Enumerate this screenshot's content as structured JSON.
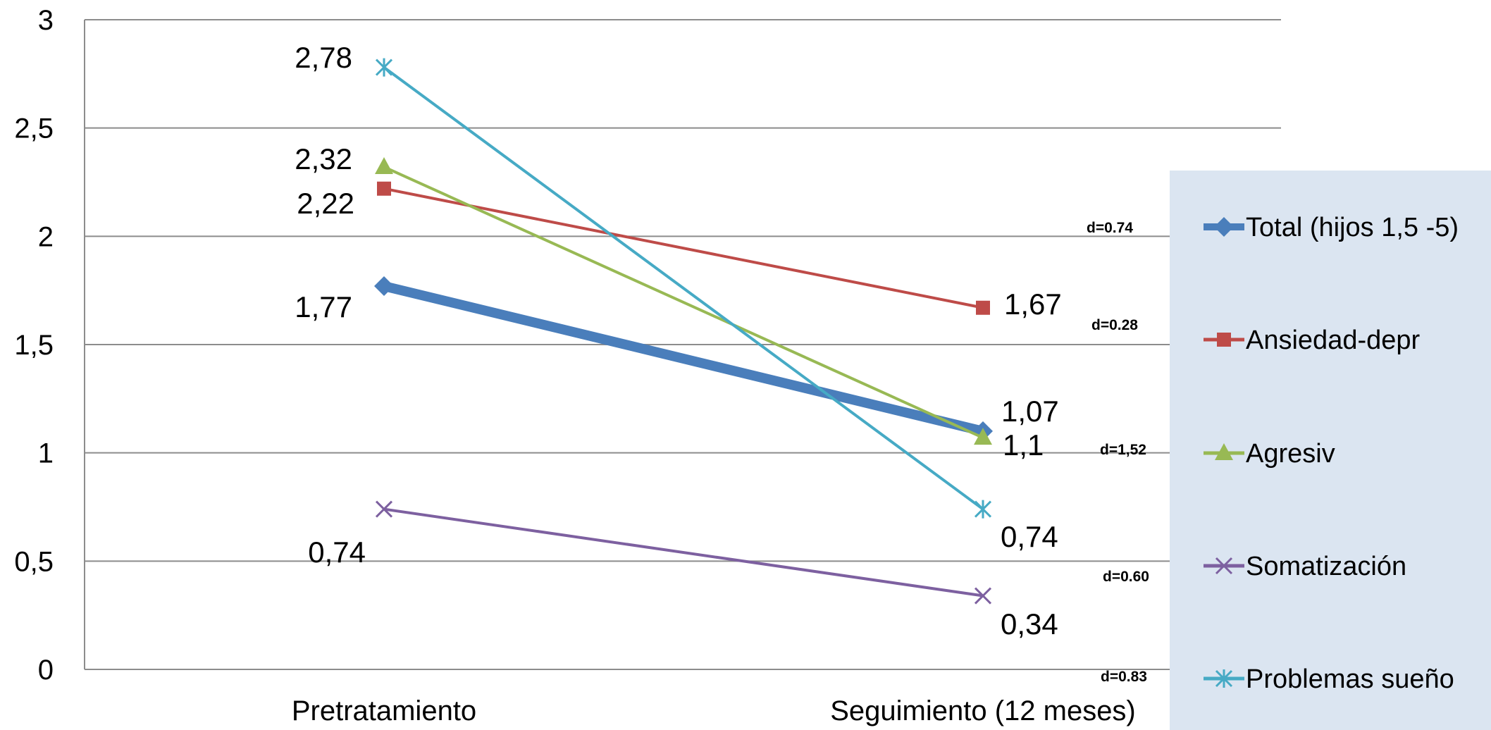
{
  "chart_data": {
    "type": "line",
    "categories": [
      "Pretratamiento",
      "Seguimiento (12 meses)"
    ],
    "ylim": [
      0,
      3
    ],
    "yticks": [
      "0",
      "0,5",
      "1",
      "1,5",
      "2",
      "2,5",
      "3"
    ],
    "grid": true,
    "legend_position": "right",
    "series": [
      {
        "name": "Total (hijos 1,5 -5)",
        "values": [
          1.77,
          1.1
        ],
        "labels": [
          "1,77",
          "1,1"
        ],
        "color": "#4a7ebb",
        "marker": "diamond",
        "effect": "d=0.74"
      },
      {
        "name": "Ansiedad-depr",
        "values": [
          2.22,
          1.67
        ],
        "labels": [
          "2,22",
          "1,67"
        ],
        "color": "#be4b48",
        "marker": "square",
        "effect": "d=0.28"
      },
      {
        "name": "Agresiv",
        "values": [
          2.32,
          1.07
        ],
        "labels": [
          "2,32",
          "1,07"
        ],
        "color": "#98b954",
        "marker": "triangle",
        "effect": "d=1,52"
      },
      {
        "name": "Somatización",
        "values": [
          0.74,
          0.34
        ],
        "labels": [
          "0,74",
          "0,34"
        ],
        "color": "#7d60a0",
        "marker": "x",
        "effect": "d=0.60"
      },
      {
        "name": "Problemas sueño",
        "values": [
          2.78,
          0.74
        ],
        "labels": [
          "2,78",
          "0,74"
        ],
        "color": "#46aac5",
        "marker": "star",
        "effect": "d=0.83"
      }
    ]
  }
}
